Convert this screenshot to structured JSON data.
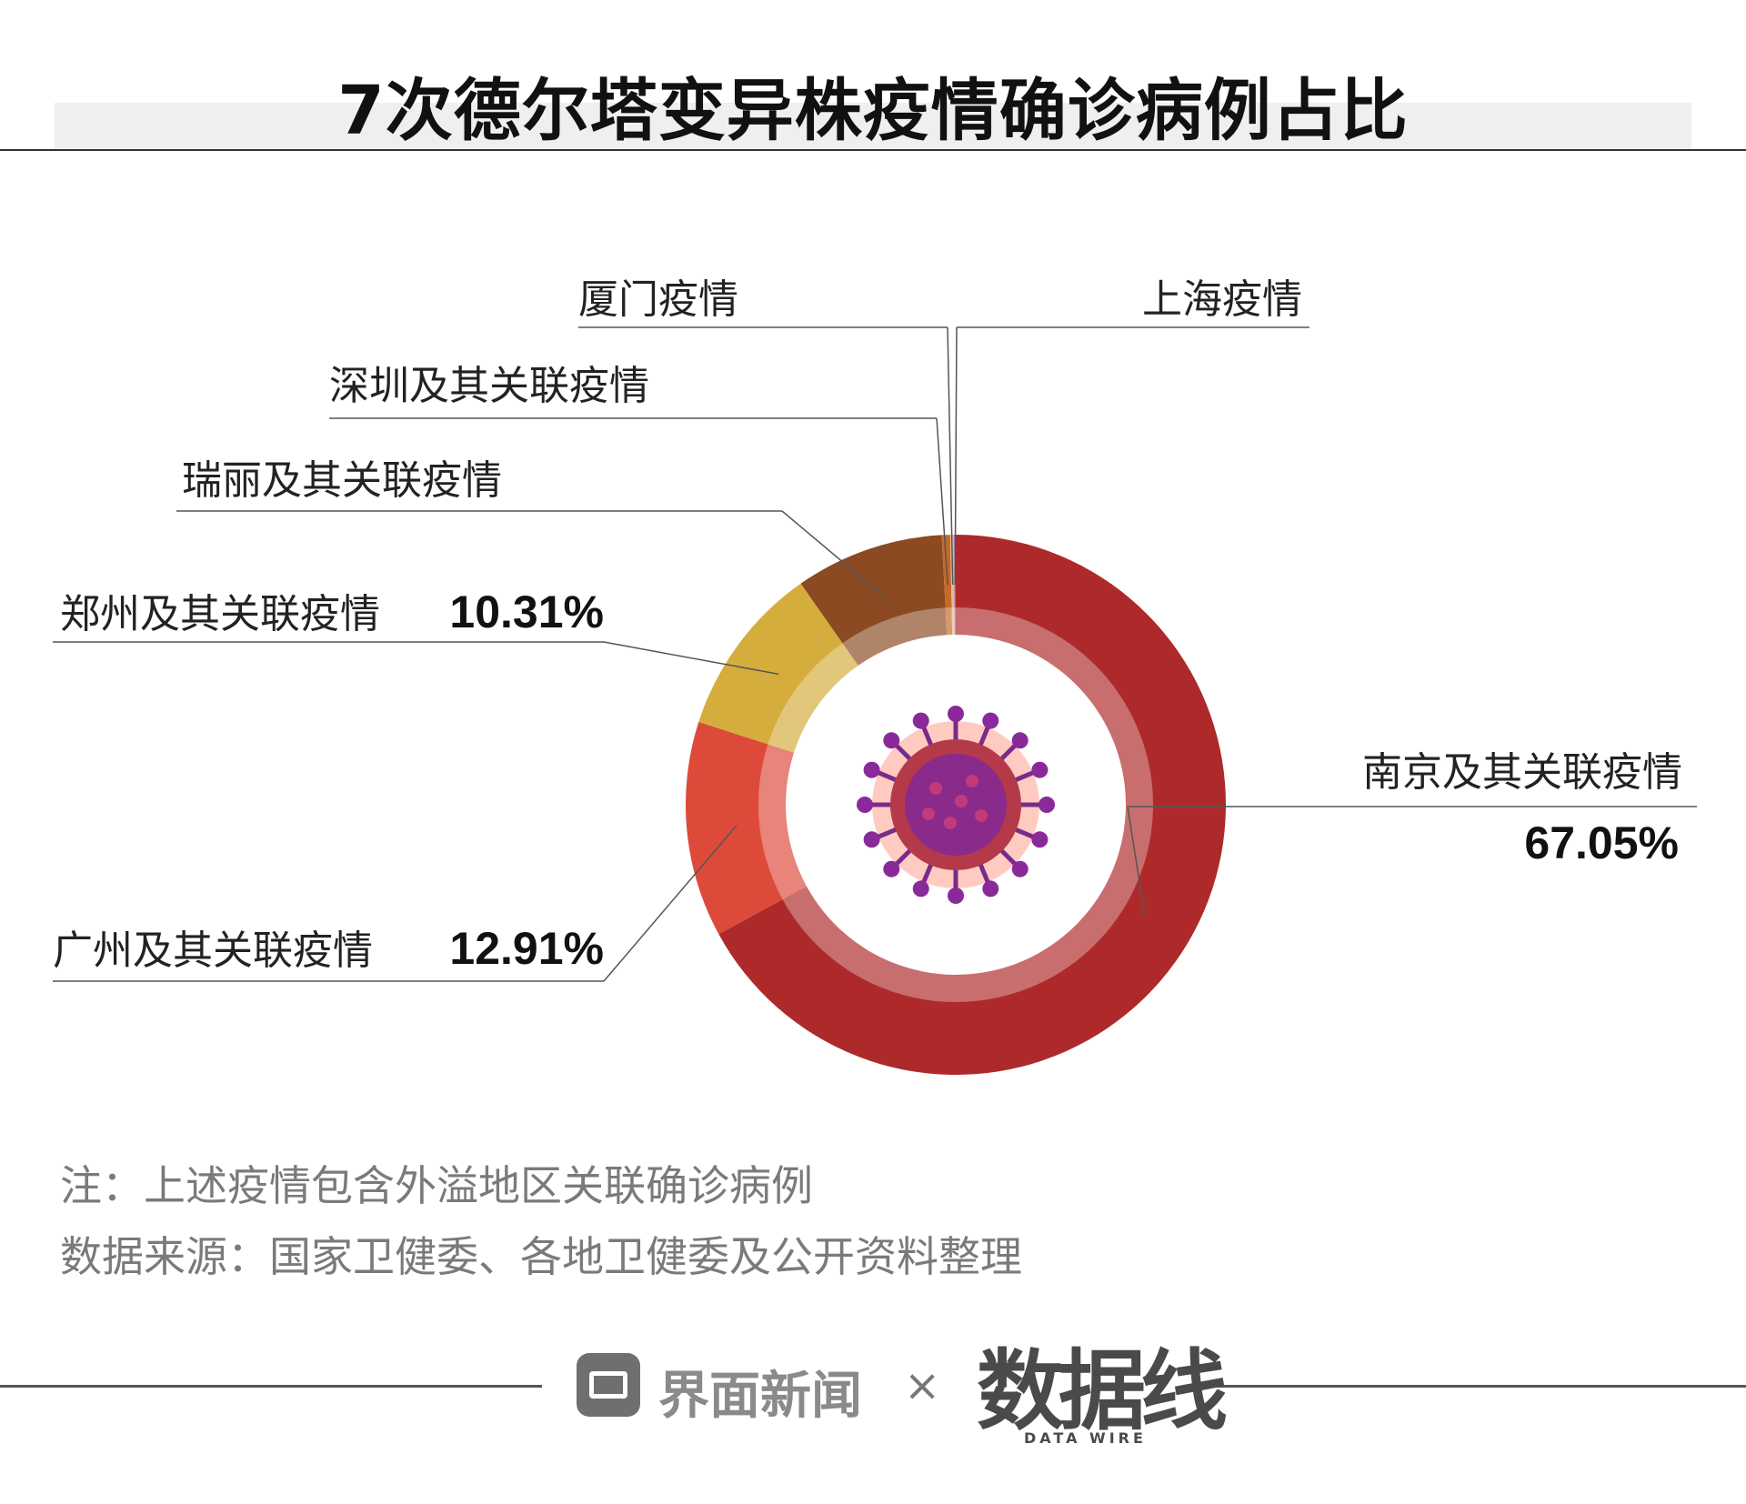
{
  "title": "7次德尔塔变异株疫情确诊病例占比",
  "chart_data": {
    "type": "pie",
    "variant": "donut",
    "categories": [
      "南京及其关联疫情",
      "广州及其关联疫情",
      "郑州及其关联疫情",
      "瑞丽及其关联疫情",
      "深圳及其关联疫情",
      "厦门疫情",
      "上海疫情"
    ],
    "values": [
      67.05,
      12.91,
      10.31,
      8.9,
      0.5,
      0.23,
      0.1
    ],
    "value_labels": [
      "67.05%",
      "12.91%",
      "10.31%",
      "",
      "",
      "",
      ""
    ],
    "colors": [
      "#ae2a2a",
      "#dd4a3a",
      "#d5ad3c",
      "#8b4a22",
      "#c8682a",
      "#d9c090",
      "#c050c0"
    ]
  },
  "notes": {
    "note": "注：上述疫情包含外溢地区关联确诊病例",
    "source": "数据来源：国家卫健委、各地卫健委及公开资料整理"
  },
  "footer": {
    "brand": "界面新闻",
    "times": "×",
    "partner": "数据线",
    "partner_sub": "DATA WIRE"
  }
}
